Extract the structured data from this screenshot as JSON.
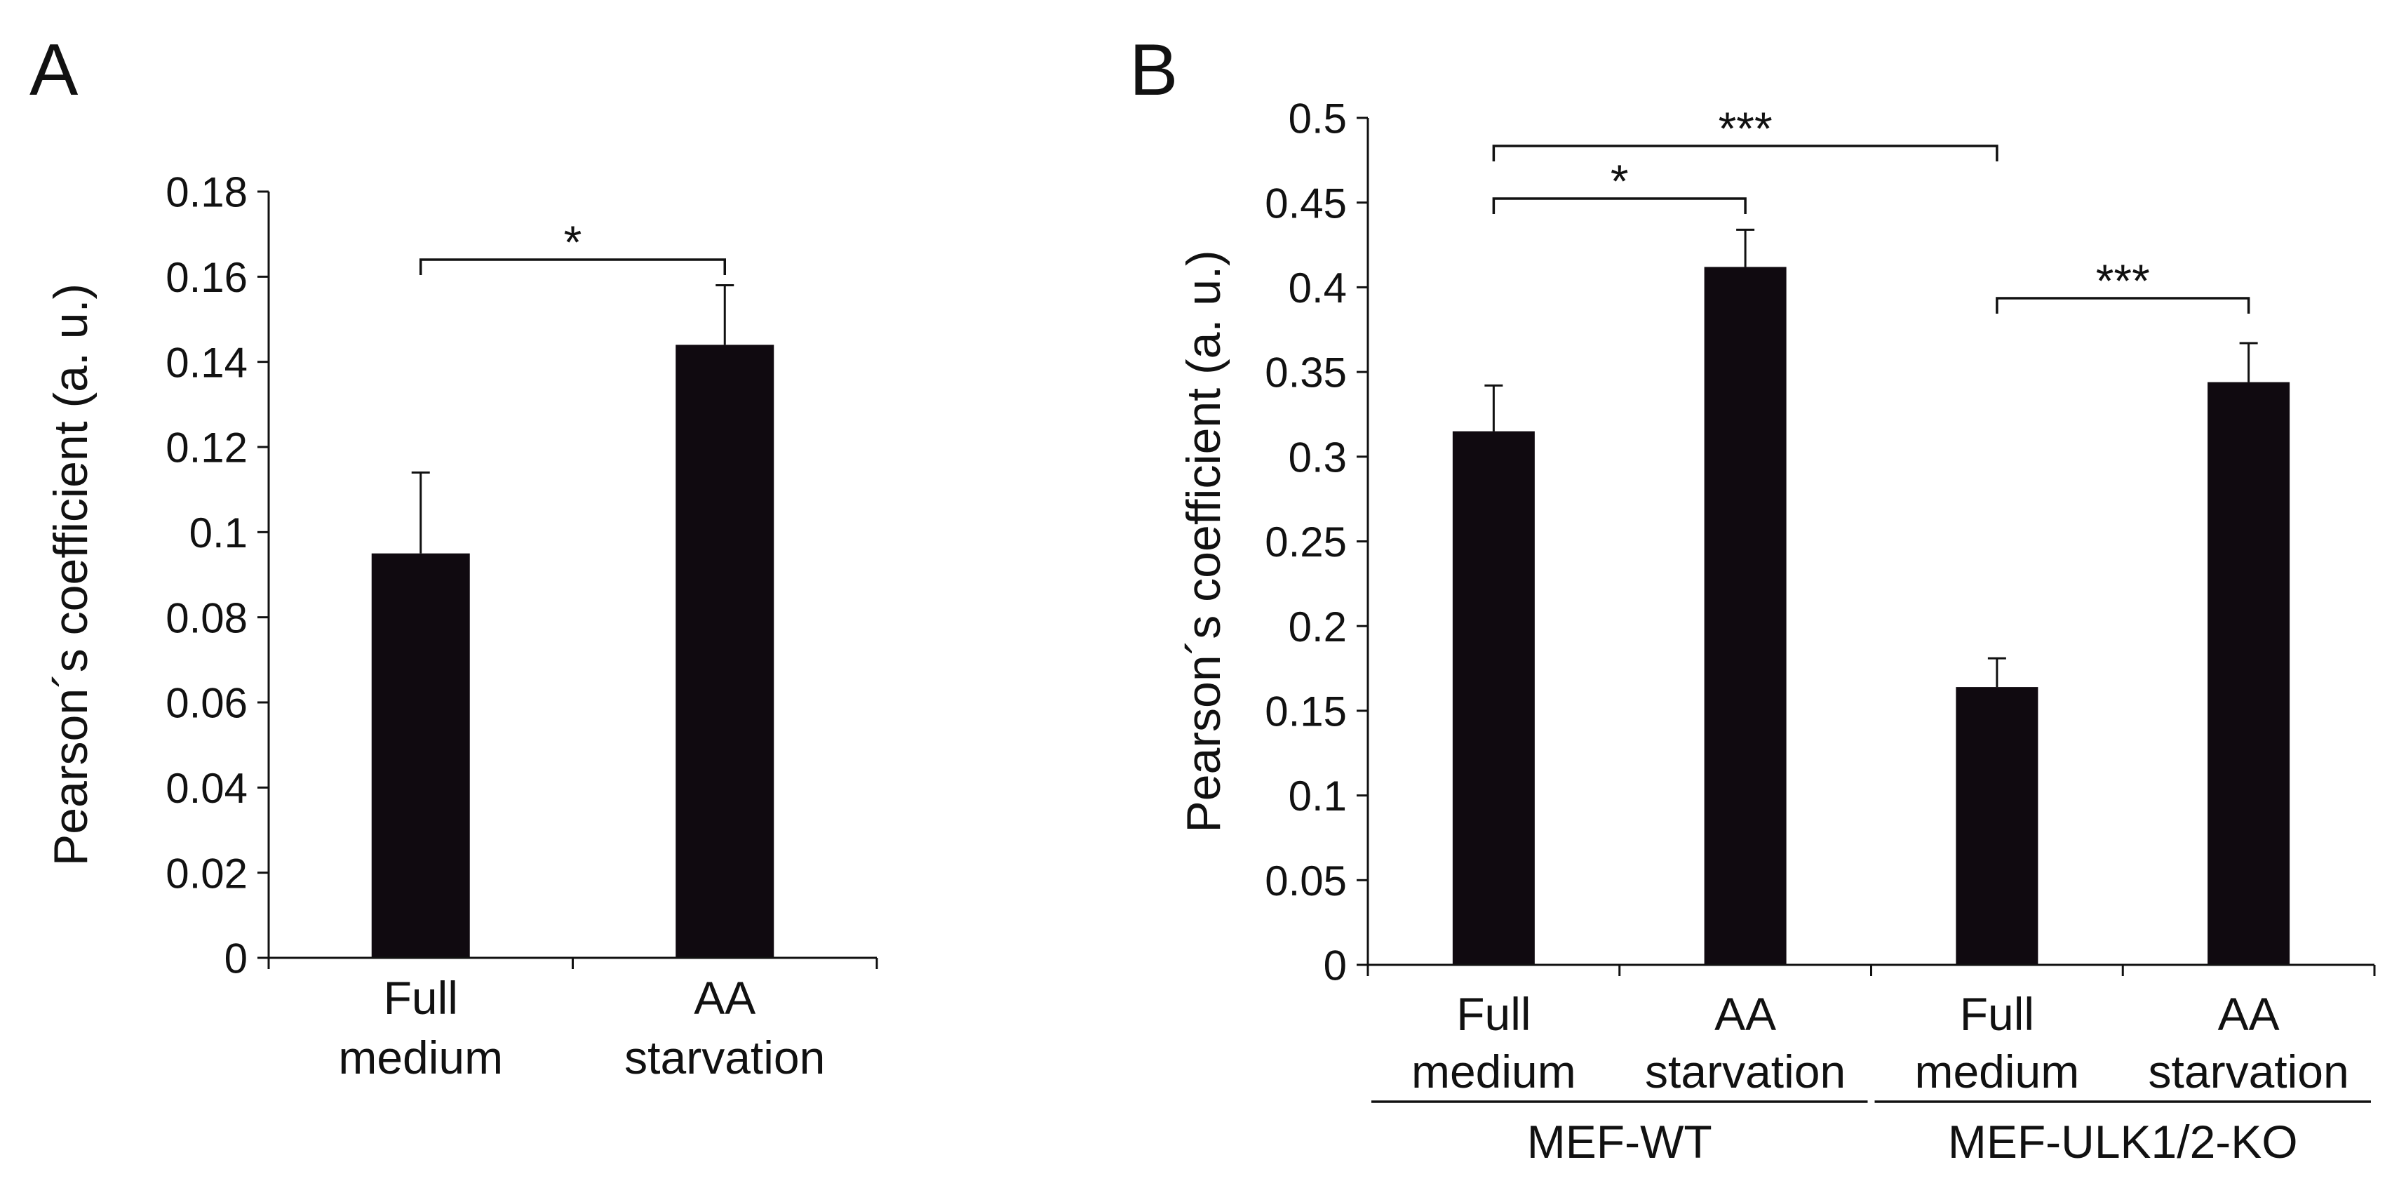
{
  "chart_data": [
    {
      "panel": "A",
      "type": "bar",
      "ylabel": "Pearson´s coefficient (a. u.)",
      "ylim": [
        0,
        0.18
      ],
      "yticks": [
        "0",
        "0.02",
        "0.04",
        "0.06",
        "0.08",
        "0.1",
        "0.12",
        "0.14",
        "0.16",
        "0.18"
      ],
      "categories": [
        {
          "line1": "Full",
          "line2": "medium"
        },
        {
          "line1": "AA",
          "line2": "starvation"
        }
      ],
      "values": [
        0.095,
        0.144
      ],
      "errors": [
        0.019,
        0.014
      ],
      "significance": [
        {
          "from": 0,
          "to": 1,
          "label": "*"
        }
      ]
    },
    {
      "panel": "B",
      "type": "bar",
      "ylabel": "Pearson´s coefficient (a. u.)",
      "ylim": [
        0,
        0.5
      ],
      "yticks": [
        "0",
        "0.05",
        "0.1",
        "0.15",
        "0.2",
        "0.25",
        "0.3",
        "0.35",
        "0.4",
        "0.45",
        "0.5"
      ],
      "categories": [
        {
          "line1": "Full",
          "line2": "medium"
        },
        {
          "line1": "AA",
          "line2": "starvation"
        },
        {
          "line1": "Full",
          "line2": "medium"
        },
        {
          "line1": "AA",
          "line2": "starvation"
        }
      ],
      "values": [
        0.315,
        0.412,
        0.164,
        0.344
      ],
      "errors": [
        0.027,
        0.022,
        0.017,
        0.023
      ],
      "groups": [
        {
          "label": "MEF-WT",
          "start": 0,
          "end": 1
        },
        {
          "label": "MEF-ULK1/2-KO",
          "start": 2,
          "end": 3
        }
      ],
      "significance": [
        {
          "from": 0,
          "to": 1,
          "label": "*"
        },
        {
          "from": 0,
          "to": 2,
          "label": "***"
        },
        {
          "from": 2,
          "to": 3,
          "label": "***"
        }
      ]
    }
  ]
}
